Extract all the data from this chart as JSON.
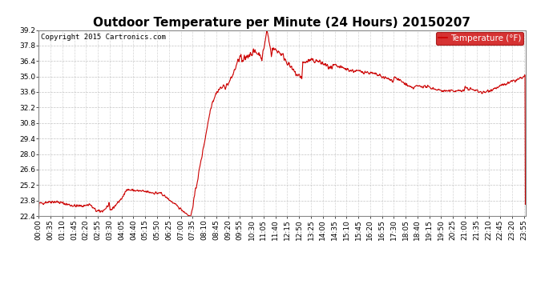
{
  "title": "Outdoor Temperature per Minute (24 Hours) 20150207",
  "copyright_text": "Copyright 2015 Cartronics.com",
  "legend_label": "Temperature (°F)",
  "y_min": 22.4,
  "y_max": 39.2,
  "y_ticks": [
    22.4,
    23.8,
    25.2,
    26.6,
    28.0,
    29.4,
    30.8,
    32.2,
    33.6,
    35.0,
    36.4,
    37.8,
    39.2
  ],
  "line_color": "#cc0000",
  "background_color": "#ffffff",
  "plot_bg_color": "#ffffff",
  "grid_color": "#aaaaaa",
  "title_fontsize": 11,
  "tick_fontsize": 6.5,
  "legend_bg": "#cc0000",
  "legend_text_color": "#ffffff",
  "copyright_fontsize": 6.5
}
